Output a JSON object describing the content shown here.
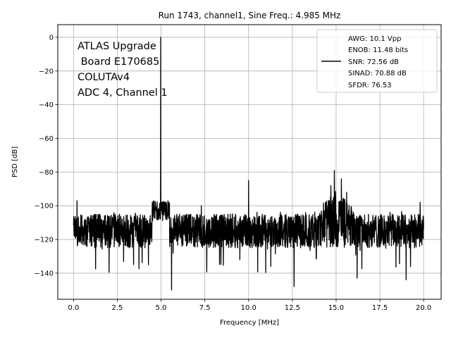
{
  "chart_data": {
    "type": "line",
    "title": "Run 1743, channel1, Sine Freq.: 4.985 MHz",
    "xlabel": "Frequency [MHz]",
    "ylabel": "PSD [dB]",
    "xlim": [
      -0.9,
      21.0
    ],
    "ylim": [
      -155.5,
      7.5
    ],
    "x_ticks": [
      0.0,
      2.5,
      5.0,
      7.5,
      10.0,
      12.5,
      15.0,
      17.5,
      20.0
    ],
    "x_tick_labels": [
      "0.0",
      "2.5",
      "5.0",
      "7.5",
      "10.0",
      "12.5",
      "15.0",
      "17.5",
      "20.0"
    ],
    "y_ticks": [
      0,
      -20,
      -40,
      -60,
      -80,
      -100,
      -120,
      -140
    ],
    "y_tick_labels": [
      "0",
      "−20",
      "−40",
      "−60",
      "−80",
      "−100",
      "−120",
      "−140"
    ],
    "grid": true,
    "legend_position": "top-right",
    "annotation_lines": [
      "ATLAS Upgrade",
      " Board E170685",
      "COLUTAv4",
      "ADC 4, Channel 1"
    ],
    "series": [
      {
        "name": "",
        "color": "#000000",
        "noise_floor_db": -115,
        "noise_band_db": [
          -125,
          -105
        ],
        "peaks": [
          {
            "x": 4.985,
            "y": 0
          },
          {
            "x": 10.0,
            "y": -85
          },
          {
            "x": 14.9,
            "y": -79
          },
          {
            "x": 15.3,
            "y": -84
          },
          {
            "x": 14.7,
            "y": -88
          },
          {
            "x": 15.6,
            "y": -92
          },
          {
            "x": 0.2,
            "y": -97
          },
          {
            "x": 19.8,
            "y": -98
          },
          {
            "x": 7.3,
            "y": -100
          }
        ],
        "dips": [
          {
            "x": 5.6,
            "y": -150
          },
          {
            "x": 12.6,
            "y": -148
          },
          {
            "x": 19.0,
            "y": -144
          },
          {
            "x": 16.2,
            "y": -143
          }
        ]
      }
    ],
    "legend_entries": [
      "AWG: 10.1 Vpp",
      "ENOB: 11.48 bits",
      "SNR: 72.56 dB",
      "SINAD: 70.88 dB",
      "SFDR: 76.53"
    ]
  }
}
